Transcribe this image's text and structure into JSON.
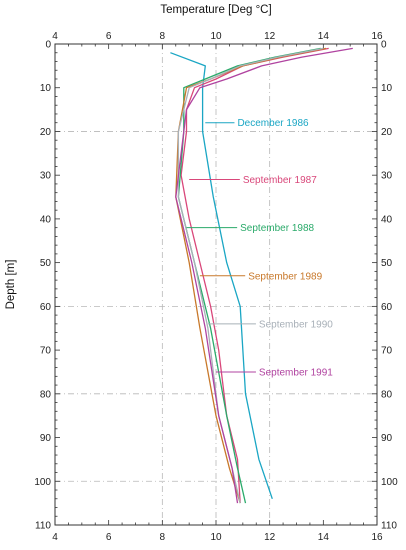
{
  "chart_data": {
    "type": "line",
    "title": "",
    "xlabel": "Temperature [Deg °C]",
    "ylabel": "Depth [m]",
    "xlim": [
      4,
      16
    ],
    "ylim": [
      0,
      110
    ],
    "y_inverted": true,
    "x_axis_position": "top and bottom",
    "x_ticks": [
      4,
      6,
      8,
      10,
      12,
      14,
      16
    ],
    "y_ticks": [
      0,
      10,
      20,
      30,
      40,
      50,
      60,
      70,
      80,
      90,
      100,
      110
    ],
    "grid": "dashed at x=8,10,12 and y=20,60,80,100",
    "legend": "none; series labelled inline with leader lines",
    "series": [
      {
        "name": "December 1986",
        "color": "#1aa6c4",
        "points": [
          [
            8.3,
            2
          ],
          [
            9.6,
            5
          ],
          [
            9.5,
            10
          ],
          [
            9.5,
            20
          ],
          [
            9.9,
            35
          ],
          [
            10.4,
            50
          ],
          [
            10.9,
            60
          ],
          [
            11.1,
            80
          ],
          [
            11.6,
            95
          ],
          [
            12.1,
            104
          ]
        ]
      },
      {
        "name": "September 1987",
        "color": "#d9477a",
        "points": [
          [
            14.2,
            1
          ],
          [
            12.5,
            3
          ],
          [
            11.0,
            5
          ],
          [
            10.0,
            8
          ],
          [
            9.2,
            10
          ],
          [
            8.9,
            15
          ],
          [
            8.9,
            20
          ],
          [
            8.7,
            30
          ],
          [
            9.0,
            40
          ],
          [
            9.4,
            50
          ],
          [
            9.8,
            60
          ],
          [
            10.1,
            70
          ],
          [
            10.4,
            85
          ],
          [
            10.8,
            95
          ],
          [
            10.9,
            105
          ]
        ]
      },
      {
        "name": "September 1988",
        "color": "#2aaa6a",
        "points": [
          [
            13.9,
            1
          ],
          [
            12.2,
            3
          ],
          [
            10.8,
            5
          ],
          [
            9.6,
            8
          ],
          [
            8.8,
            10
          ],
          [
            8.8,
            20
          ],
          [
            8.6,
            35
          ],
          [
            9.2,
            50
          ],
          [
            9.8,
            65
          ],
          [
            10.4,
            85
          ],
          [
            10.8,
            97
          ],
          [
            11.1,
            105
          ]
        ]
      },
      {
        "name": "September 1989",
        "color": "#c8782a",
        "points": [
          [
            14.1,
            1
          ],
          [
            12.4,
            3
          ],
          [
            11.0,
            5
          ],
          [
            9.8,
            8
          ],
          [
            8.9,
            10
          ],
          [
            8.6,
            20
          ],
          [
            8.5,
            35
          ],
          [
            9.0,
            50
          ],
          [
            9.4,
            65
          ],
          [
            10.0,
            85
          ],
          [
            10.5,
            97
          ],
          [
            10.9,
            105
          ]
        ]
      },
      {
        "name": "September 1990",
        "color": "#a8b0b8",
        "points": [
          [
            14.0,
            1
          ],
          [
            12.3,
            3
          ],
          [
            10.9,
            5
          ],
          [
            9.8,
            8
          ],
          [
            9.0,
            10
          ],
          [
            8.6,
            20
          ],
          [
            8.6,
            35
          ],
          [
            9.2,
            50
          ],
          [
            9.7,
            65
          ],
          [
            10.1,
            85
          ],
          [
            10.6,
            97
          ],
          [
            10.9,
            105
          ]
        ]
      },
      {
        "name": "September 1991",
        "color": "#b043a0",
        "points": [
          [
            15.1,
            1
          ],
          [
            13.2,
            3
          ],
          [
            11.7,
            5
          ],
          [
            10.4,
            8
          ],
          [
            9.4,
            10
          ],
          [
            8.9,
            15
          ],
          [
            8.7,
            25
          ],
          [
            8.5,
            35
          ],
          [
            9.1,
            50
          ],
          [
            9.6,
            65
          ],
          [
            10.1,
            85
          ],
          [
            10.6,
            97
          ],
          [
            10.8,
            105
          ]
        ]
      }
    ],
    "annotations": [
      {
        "text": "December 1986",
        "series": 0,
        "anchor": [
          9.6,
          18
        ],
        "text_at": [
          10.8,
          18
        ]
      },
      {
        "text": "September 1987",
        "series": 1,
        "anchor": [
          9.0,
          31
        ],
        "text_at": [
          11.0,
          31
        ]
      },
      {
        "text": "September 1988",
        "series": 2,
        "anchor": [
          8.9,
          42
        ],
        "text_at": [
          10.9,
          42
        ]
      },
      {
        "text": "September 1989",
        "series": 3,
        "anchor": [
          9.4,
          53
        ],
        "text_at": [
          11.2,
          53
        ]
      },
      {
        "text": "September 1990",
        "series": 4,
        "anchor": [
          9.7,
          64
        ],
        "text_at": [
          11.6,
          64
        ]
      },
      {
        "text": "September 1991",
        "series": 5,
        "anchor": [
          10.0,
          75
        ],
        "text_at": [
          11.6,
          75
        ]
      }
    ]
  }
}
